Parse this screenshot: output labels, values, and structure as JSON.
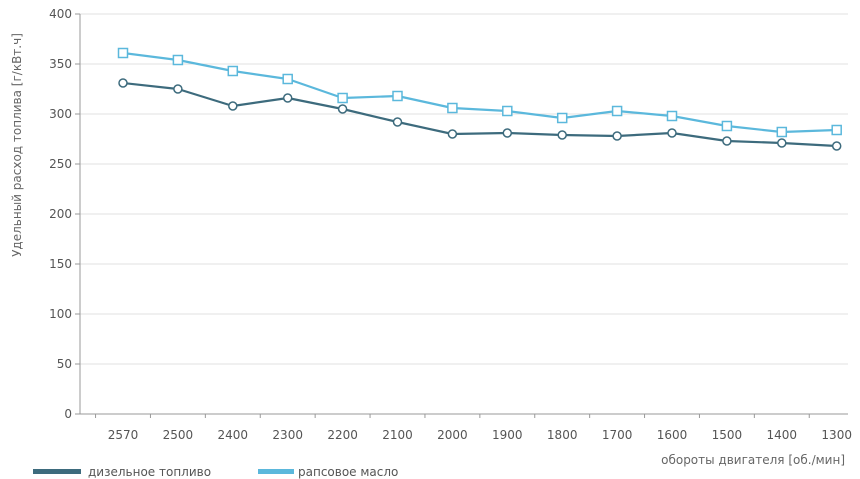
{
  "chart_data": {
    "type": "line",
    "title": "",
    "xlabel": "обороты двигателя [об./мин]",
    "ylabel": "Удельный расход топлива [г/кВт.ч]",
    "categories": [
      "2570",
      "2500",
      "2400",
      "2300",
      "2200",
      "2100",
      "2000",
      "1900",
      "1800",
      "1700",
      "1600",
      "1500",
      "1400",
      "1300"
    ],
    "ylim": [
      0,
      400
    ],
    "yticks": [
      0,
      50,
      100,
      150,
      200,
      250,
      300,
      350,
      400
    ],
    "grid": true,
    "legend_position": "bottom-left",
    "series": [
      {
        "name": "дизельное топливо",
        "color": "#3d6b7d",
        "marker": "circle",
        "values": [
          331,
          325,
          308,
          316,
          305,
          292,
          280,
          281,
          279,
          278,
          281,
          273,
          271,
          268
        ]
      },
      {
        "name": "рапсовое масло",
        "color": "#5bb8dc",
        "marker": "square",
        "values": [
          361,
          354,
          343,
          335,
          316,
          318,
          306,
          303,
          296,
          303,
          298,
          288,
          282,
          284
        ]
      }
    ]
  }
}
